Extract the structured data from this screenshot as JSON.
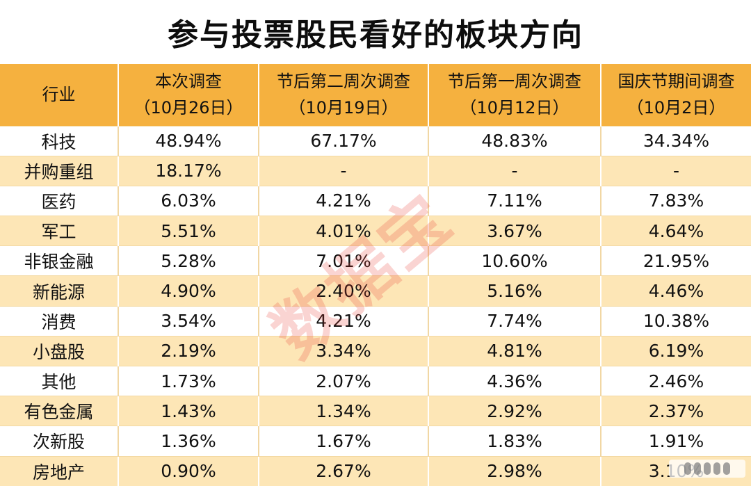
{
  "title": "参与投票股民看好的板块方向",
  "watermark": "数据宝",
  "table": {
    "headers": [
      {
        "line1": "行业",
        "line2": ""
      },
      {
        "line1": "本次调查",
        "line2": "（10月26日）"
      },
      {
        "line1": "节后第二周次调查",
        "line2": "（10月19日）"
      },
      {
        "line1": "节后第一周次调查",
        "line2": "（10月12日）"
      },
      {
        "line1": "国庆节期间调查",
        "line2": "（10月2日）"
      }
    ],
    "rows": [
      [
        "科技",
        "48.94%",
        "67.17%",
        "48.83%",
        "34.34%"
      ],
      [
        "并购重组",
        "18.17%",
        "-",
        "-",
        "-"
      ],
      [
        "医药",
        "6.03%",
        "4.21%",
        "7.11%",
        "7.83%"
      ],
      [
        "军工",
        "5.51%",
        "4.01%",
        "3.67%",
        "4.64%"
      ],
      [
        "非银金融",
        "5.28%",
        "7.01%",
        "10.60%",
        "21.95%"
      ],
      [
        "新能源",
        "4.90%",
        "2.40%",
        "5.16%",
        "4.46%"
      ],
      [
        "消费",
        "3.54%",
        "4.21%",
        "7.74%",
        "10.38%"
      ],
      [
        "小盘股",
        "2.19%",
        "3.34%",
        "4.81%",
        "6.19%"
      ],
      [
        "其他",
        "1.73%",
        "2.07%",
        "4.36%",
        "2.46%"
      ],
      [
        "有色金属",
        "1.43%",
        "1.34%",
        "2.92%",
        "2.37%"
      ],
      [
        "次新股",
        "1.36%",
        "1.67%",
        "1.83%",
        "1.91%"
      ],
      [
        "房地产",
        "0.90%",
        "2.67%",
        "2.98%",
        "3.10%"
      ]
    ]
  },
  "colors": {
    "header_bg": "#f5b13f",
    "stripe_bg": "#fde6b6",
    "watermark": "#e63c32"
  }
}
